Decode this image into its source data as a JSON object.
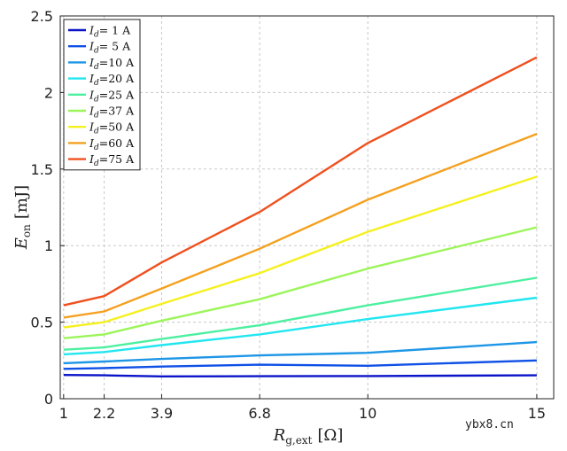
{
  "chart_data": {
    "type": "line",
    "title": "",
    "xlabel_main": "R",
    "xlabel_sub": "g,ext",
    "xlabel_unit": "[Ω]",
    "ylabel_main": "E",
    "ylabel_sub": "on",
    "ylabel_unit": "[mJ]",
    "x": [
      1,
      2.2,
      3.9,
      6.8,
      10,
      15
    ],
    "x_tick_labels": [
      "1",
      "2.2",
      "3.9",
      "6.8",
      "10",
      "15"
    ],
    "xlim": [
      0.9,
      15.5
    ],
    "ylim": [
      0,
      2.5
    ],
    "y_ticks": [
      0,
      0.5,
      1,
      1.5,
      2,
      2.5
    ],
    "y_tick_labels": [
      "0",
      "0.5",
      "1",
      "1.5",
      "2",
      "2.5"
    ],
    "grid": true,
    "legend_position": "top-left",
    "series": [
      {
        "name": "I_d= 1 A",
        "legend_var": "I",
        "legend_sub": "d",
        "legend_rest": "= 1 A",
        "color": "#0a14c8",
        "values": [
          0.155,
          0.153,
          0.146,
          0.147,
          0.148,
          0.153
        ]
      },
      {
        "name": "I_d= 5 A",
        "legend_var": "I",
        "legend_sub": "d",
        "legend_rest": "= 5 A",
        "color": "#0f50e6",
        "values": [
          0.195,
          0.2,
          0.21,
          0.222,
          0.215,
          0.25
        ]
      },
      {
        "name": "I_d=10 A",
        "legend_var": "I",
        "legend_sub": "d",
        "legend_rest": "=10 A",
        "color": "#1e96e6",
        "values": [
          0.232,
          0.243,
          0.26,
          0.283,
          0.3,
          0.37
        ]
      },
      {
        "name": "I_d=20 A",
        "legend_var": "I",
        "legend_sub": "d",
        "legend_rest": "=20 A",
        "color": "#22e6f0",
        "values": [
          0.29,
          0.305,
          0.35,
          0.42,
          0.52,
          0.66
        ]
      },
      {
        "name": "I_d=25 A",
        "legend_var": "I",
        "legend_sub": "d",
        "legend_rest": "=25 A",
        "color": "#4cf0a0",
        "values": [
          0.32,
          0.335,
          0.39,
          0.48,
          0.61,
          0.79
        ]
      },
      {
        "name": "I_d=37 A",
        "legend_var": "I",
        "legend_sub": "d",
        "legend_rest": "=37 A",
        "color": "#9cf55a",
        "values": [
          0.395,
          0.42,
          0.51,
          0.65,
          0.85,
          1.12
        ]
      },
      {
        "name": "I_d=50 A",
        "legend_var": "I",
        "legend_sub": "d",
        "legend_rest": "=50 A",
        "color": "#f5f01e",
        "values": [
          0.465,
          0.5,
          0.62,
          0.82,
          1.09,
          1.45
        ]
      },
      {
        "name": "I_d=60 A",
        "legend_var": "I",
        "legend_sub": "d",
        "legend_rest": "=60 A",
        "color": "#f5a01e",
        "values": [
          0.53,
          0.57,
          0.72,
          0.98,
          1.3,
          1.73
        ]
      },
      {
        "name": "I_d=75 A",
        "legend_var": "I",
        "legend_sub": "d",
        "legend_rest": "=75 A",
        "color": "#f0501e",
        "values": [
          0.61,
          0.67,
          0.89,
          1.22,
          1.67,
          2.23
        ]
      }
    ]
  },
  "watermark": "ybx8.cn"
}
